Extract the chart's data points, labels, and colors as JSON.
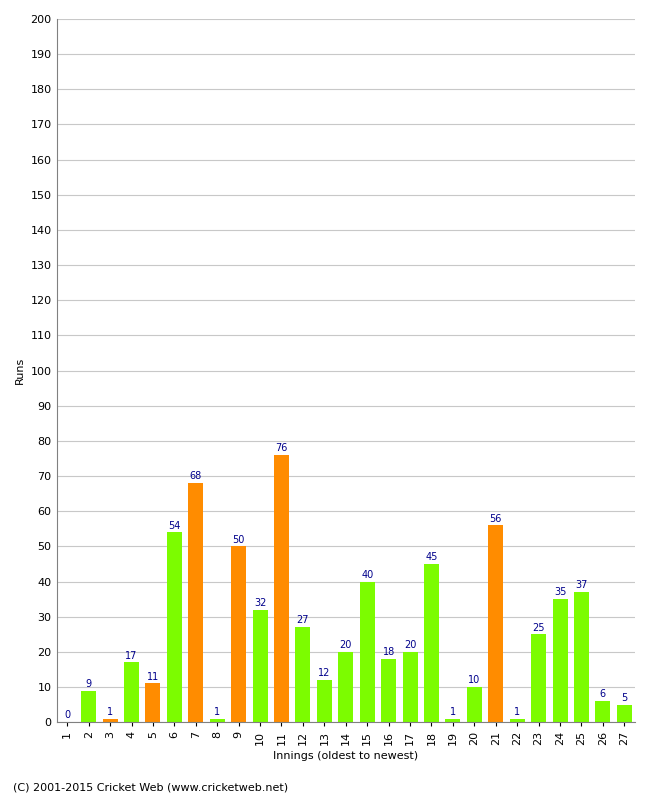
{
  "title": "",
  "xlabel": "Innings (oldest to newest)",
  "ylabel": "Runs",
  "ylim": [
    0,
    200
  ],
  "yticks": [
    0,
    10,
    20,
    30,
    40,
    50,
    60,
    70,
    80,
    90,
    100,
    110,
    120,
    130,
    140,
    150,
    160,
    170,
    180,
    190,
    200
  ],
  "innings": [
    1,
    2,
    3,
    4,
    5,
    6,
    7,
    8,
    9,
    10,
    11,
    12,
    13,
    14,
    15,
    16,
    17,
    18,
    19,
    20,
    21,
    22,
    23,
    24,
    25,
    26,
    27
  ],
  "values": [
    0,
    9,
    1,
    17,
    11,
    54,
    68,
    1,
    50,
    32,
    76,
    27,
    12,
    20,
    40,
    18,
    20,
    45,
    1,
    10,
    56,
    1,
    25,
    35,
    37,
    6,
    5
  ],
  "colors": [
    "#FF8C00",
    "#7CFC00",
    "#FF8C00",
    "#7CFC00",
    "#FF8C00",
    "#7CFC00",
    "#FF8C00",
    "#7CFC00",
    "#FF8C00",
    "#7CFC00",
    "#FF8C00",
    "#7CFC00",
    "#7CFC00",
    "#7CFC00",
    "#7CFC00",
    "#7CFC00",
    "#7CFC00",
    "#7CFC00",
    "#7CFC00",
    "#7CFC00",
    "#FF8C00",
    "#7CFC00",
    "#7CFC00",
    "#7CFC00",
    "#7CFC00",
    "#7CFC00",
    "#7CFC00"
  ],
  "label_color": "#00008B",
  "label_fontsize": 7,
  "background_color": "#FFFFFF",
  "grid_color": "#C8C8C8",
  "axis_label_fontsize": 8,
  "tick_fontsize": 8,
  "footer": "(C) 2001-2015 Cricket Web (www.cricketweb.net)",
  "footer_fontsize": 8,
  "bar_width": 0.7
}
